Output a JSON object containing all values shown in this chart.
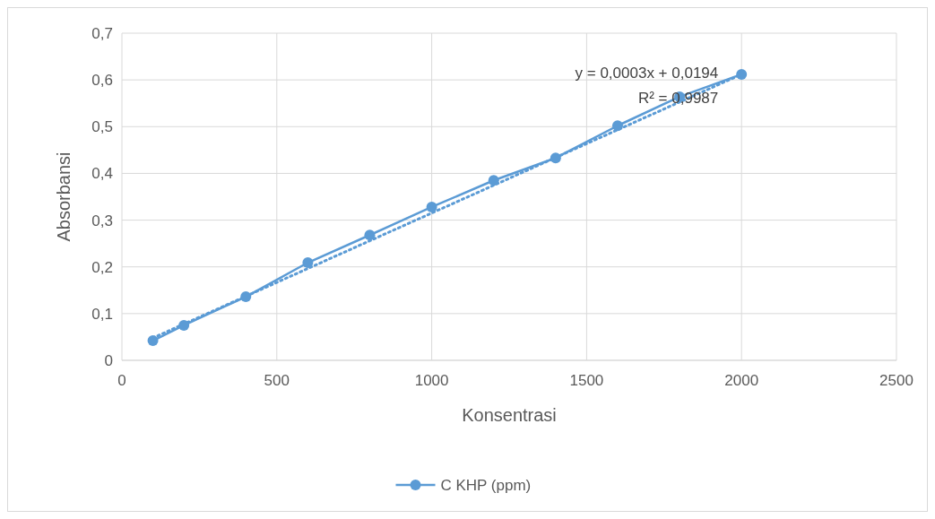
{
  "chart_data": {
    "type": "line",
    "xlabel": "Konsentrasi",
    "ylabel": "Absorbansi",
    "xlim": [
      0,
      2500
    ],
    "xticks": [
      0,
      500,
      1000,
      1500,
      2000,
      2500
    ],
    "ylim": [
      0,
      0.7
    ],
    "yticks": [
      {
        "value": 0,
        "label": "0"
      },
      {
        "value": 0.1,
        "label": "0,1"
      },
      {
        "value": 0.2,
        "label": "0,2"
      },
      {
        "value": 0.3,
        "label": "0,3"
      },
      {
        "value": 0.4,
        "label": "0,4"
      },
      {
        "value": 0.5,
        "label": "0,5"
      },
      {
        "value": 0.6,
        "label": "0,6"
      },
      {
        "value": 0.7,
        "label": "0,7"
      }
    ],
    "grid": true,
    "legend": "bottom",
    "marker": "circle",
    "series": [
      {
        "name": "C KHP (ppm)",
        "color": "#5b9bd5",
        "x": [
          100,
          200,
          400,
          600,
          800,
          1000,
          1200,
          1400,
          1600,
          1800,
          2000
        ],
        "values": [
          0.042,
          0.075,
          0.136,
          0.209,
          0.268,
          0.328,
          0.385,
          0.433,
          0.502,
          0.564,
          0.612
        ]
      },
      {
        "type": "line",
        "color": "#5b9bd5",
        "line_style": "dotted",
        "marker": "none",
        "x": [
          100,
          2000
        ],
        "values": [
          0.048,
          0.612
        ]
      }
    ],
    "annotations": [
      "y = 0,0003x + 0,0194",
      "R² = 0,9987"
    ]
  }
}
